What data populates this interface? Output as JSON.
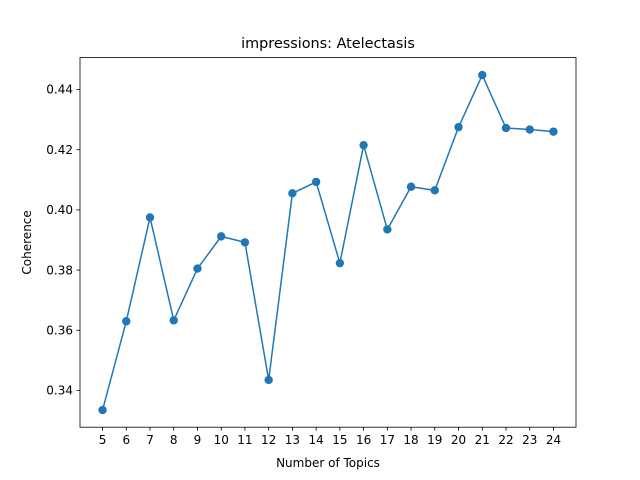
{
  "chart_data": {
    "type": "line",
    "title": "impressions: Atelectasis",
    "xlabel": "Number of Topics",
    "ylabel": "Coherence",
    "x": [
      5,
      6,
      7,
      8,
      9,
      10,
      11,
      12,
      13,
      14,
      15,
      16,
      17,
      18,
      19,
      20,
      21,
      22,
      23,
      24
    ],
    "xtick_labels": [
      "5",
      "6",
      "7",
      "8",
      "9",
      "10",
      "11",
      "12",
      "13",
      "14",
      "15",
      "16",
      "17",
      "18",
      "19",
      "20",
      "21",
      "22",
      "23",
      "24"
    ],
    "series": [
      {
        "values": [
          0.3335,
          0.363,
          0.3975,
          0.3633,
          0.3805,
          0.3912,
          0.3892,
          0.3435,
          0.4055,
          0.4093,
          0.3823,
          0.4215,
          0.3935,
          0.4077,
          0.4065,
          0.4275,
          0.4448,
          0.4272,
          0.4267,
          0.426
        ],
        "color": "#1f77b4",
        "marker": "circle"
      }
    ],
    "xlim": [
      4.05,
      24.95
    ],
    "ylim": [
      0.3278,
      0.4506
    ],
    "yticks": [
      0.34,
      0.36,
      0.38,
      0.4,
      0.42,
      0.44
    ],
    "ytick_labels": [
      "0.34",
      "0.36",
      "0.38",
      "0.40",
      "0.42",
      "0.44"
    ],
    "grid": false,
    "legend": false
  }
}
